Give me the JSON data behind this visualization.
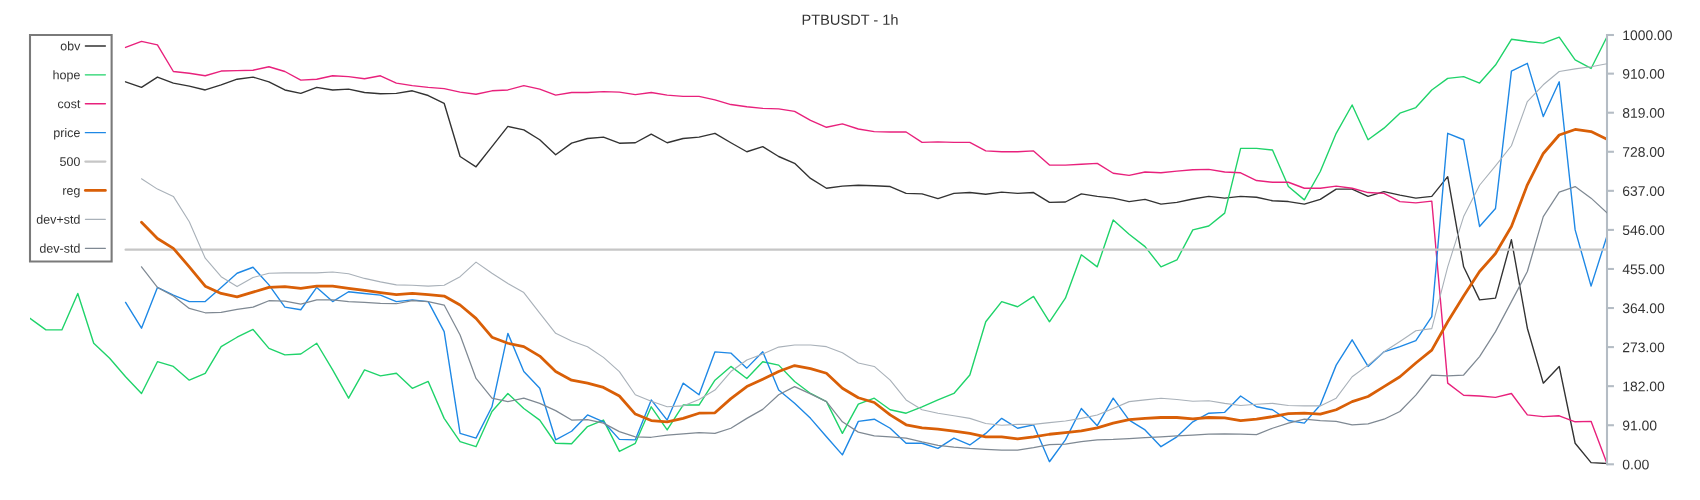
{
  "chart_data": {
    "type": "line",
    "title": "PTBUSDT - 1h",
    "categories": [
      null,
      null,
      null,
      null,
      null,
      null,
      null,
      null,
      null,
      null,
      null,
      null,
      null,
      null,
      null,
      null,
      null,
      null,
      null,
      null,
      null,
      null,
      null,
      null,
      null,
      null,
      null,
      null,
      null,
      null,
      null,
      null,
      null,
      null,
      null,
      null,
      null,
      null,
      null,
      null,
      null,
      null,
      null,
      null,
      null,
      null,
      null,
      null,
      null,
      null,
      null,
      null,
      null,
      null,
      null,
      null,
      null,
      null,
      null,
      null,
      null,
      null,
      null,
      null,
      null,
      null,
      null,
      null,
      null,
      null,
      null,
      null,
      null,
      null,
      null,
      null,
      null,
      null,
      null,
      null,
      null,
      null,
      null,
      null,
      null,
      null,
      null,
      null,
      null,
      null,
      null,
      null,
      null,
      null,
      null,
      null,
      null,
      null,
      null,
      null
    ],
    "series": [
      {
        "name": "obv",
        "color": "#333333",
        "values": [
          null,
          null,
          null,
          null,
          null,
          null,
          891,
          878,
          902,
          888,
          881,
          872,
          884,
          897,
          902,
          891,
          872,
          864,
          878,
          872,
          874,
          866,
          863,
          864,
          870,
          859,
          841,
          717,
          693,
          740,
          787,
          779,
          756,
          721,
          748,
          759,
          762,
          748,
          749,
          769,
          749,
          759,
          762,
          771,
          749,
          728,
          740,
          717,
          701,
          666,
          643,
          648,
          650,
          649,
          647,
          631,
          630,
          619,
          631,
          633,
          629,
          634,
          631,
          633,
          610,
          611,
          630,
          624,
          620,
          612,
          617,
          606,
          610,
          618,
          624,
          620,
          624,
          622,
          614,
          612,
          606,
          617,
          641,
          641,
          624,
          635,
          627,
          620,
          624,
          670,
          460,
          383,
          387,
          523,
          317,
          189,
          228,
          49,
          4,
          2
        ]
      },
      {
        "name": "hope",
        "color": "#1fd36a",
        "values": [
          340,
          313,
          313,
          398,
          282,
          247,
          204,
          165,
          239,
          228,
          196,
          212,
          274,
          296,
          314,
          270,
          255,
          257,
          282,
          220,
          154,
          220,
          206,
          212,
          177,
          193,
          107,
          53,
          41,
          123,
          165,
          130,
          103,
          49,
          48,
          88,
          103,
          30,
          49,
          134,
          80,
          138,
          138,
          196,
          228,
          200,
          239,
          231,
          193,
          165,
          146,
          72,
          140,
          154,
          127,
          119,
          134,
          150,
          165,
          208,
          332,
          379,
          367,
          391,
          332,
          387,
          488,
          460,
          569,
          536,
          507,
          460,
          476,
          546,
          555,
          585,
          736,
          736,
          732,
          647,
          616,
          682,
          771,
          837,
          756,
          783,
          818,
          831,
          872,
          899,
          903,
          888,
          930,
          990,
          985,
          981,
          995,
          942,
          922,
          996
        ]
      },
      {
        "name": "cost",
        "color": "#e8217c",
        "values": [
          null,
          null,
          null,
          null,
          null,
          null,
          971,
          985,
          977,
          915,
          911,
          905,
          916,
          917,
          918,
          926,
          915,
          895,
          897,
          905,
          903,
          898,
          905,
          888,
          882,
          878,
          875,
          867,
          862,
          870,
          872,
          882,
          874,
          860,
          866,
          866,
          868,
          867,
          861,
          866,
          860,
          857,
          857,
          849,
          838,
          833,
          829,
          828,
          822,
          801,
          785,
          793,
          781,
          775,
          774,
          774,
          750,
          751,
          750,
          750,
          730,
          728,
          728,
          730,
          697,
          697,
          699,
          701,
          678,
          673,
          681,
          679,
          683,
          686,
          687,
          681,
          679,
          661,
          657,
          657,
          643,
          643,
          648,
          643,
          633,
          631,
          612,
          609,
          613,
          189,
          161,
          159,
          156,
          165,
          115,
          111,
          113,
          99,
          100,
          2
        ]
      },
      {
        "name": "price",
        "color": "#1e88e5",
        "values": [
          null,
          null,
          null,
          null,
          null,
          null,
          377,
          317,
          412,
          394,
          379,
          379,
          412,
          445,
          459,
          418,
          366,
          360,
          412,
          379,
          402,
          398,
          394,
          379,
          383,
          379,
          309,
          72,
          61,
          134,
          305,
          216,
          177,
          57,
          77,
          115,
          99,
          58,
          57,
          150,
          103,
          189,
          162,
          262,
          259,
          224,
          262,
          173,
          142,
          107,
          64,
          22,
          100,
          105,
          84,
          49,
          49,
          37,
          61,
          45,
          72,
          107,
          84,
          92,
          6,
          57,
          130,
          90,
          154,
          103,
          80,
          41,
          64,
          99,
          119,
          121,
          159,
          134,
          127,
          102,
          96,
          138,
          231,
          290,
          228,
          262,
          274,
          288,
          344,
          771,
          756,
          554,
          596,
          916,
          934,
          810,
          891,
          546,
          415,
          532
        ]
      },
      {
        "name": "500",
        "color": "#c6c6c6",
        "values": [
          null,
          null,
          null,
          null,
          null,
          null,
          500,
          500,
          500,
          500,
          500,
          500,
          500,
          500,
          500,
          500,
          500,
          500,
          500,
          500,
          500,
          500,
          500,
          500,
          500,
          500,
          500,
          500,
          500,
          500,
          500,
          500,
          500,
          500,
          500,
          500,
          500,
          500,
          500,
          500,
          500,
          500,
          500,
          500,
          500,
          500,
          500,
          500,
          500,
          500,
          500,
          500,
          500,
          500,
          500,
          500,
          500,
          500,
          500,
          500,
          500,
          500,
          500,
          500,
          500,
          500,
          500,
          500,
          500,
          500,
          500,
          500,
          500,
          500,
          500,
          500,
          500,
          500,
          500,
          500,
          500,
          500,
          500,
          500,
          500,
          500,
          500,
          500,
          500,
          500,
          500,
          500,
          500,
          500,
          500,
          500,
          500,
          500,
          500,
          500
        ]
      },
      {
        "name": "reg",
        "color": "#d95f07",
        "values": [
          null,
          null,
          null,
          null,
          null,
          null,
          null,
          564,
          526,
          503,
          460,
          415,
          398,
          390,
          401,
          412,
          414,
          410,
          415,
          415,
          410,
          405,
          400,
          395,
          398,
          395,
          392,
          371,
          340,
          296,
          282,
          274,
          252,
          216,
          196,
          189,
          179,
          159,
          117,
          102,
          99,
          107,
          119,
          120,
          153,
          181,
          198,
          216,
          230,
          223,
          212,
          177,
          155,
          144,
          115,
          92,
          85,
          82,
          77,
          72,
          64,
          64,
          59,
          64,
          70,
          74,
          78,
          85,
          96,
          104,
          107,
          109,
          109,
          106,
          109,
          108,
          102,
          105,
          111,
          118,
          119,
          117,
          127,
          146,
          158,
          181,
          204,
          236,
          266,
          332,
          392,
          449,
          491,
          554,
          651,
          724,
          767,
          780,
          775,
          757
        ]
      },
      {
        "name": "dev+std",
        "color": "#a9b1b9",
        "values": [
          null,
          null,
          null,
          null,
          null,
          null,
          null,
          665,
          641,
          624,
          565,
          480,
          437,
          414,
          435,
          445,
          446,
          446,
          446,
          448,
          444,
          433,
          425,
          418,
          417,
          415,
          417,
          437,
          471,
          445,
          421,
          400,
          352,
          305,
          287,
          274,
          249,
          216,
          162,
          147,
          134,
          136,
          151,
          173,
          216,
          243,
          257,
          273,
          278,
          278,
          274,
          260,
          236,
          228,
          196,
          150,
          127,
          119,
          113,
          107,
          95,
          91,
          93,
          93,
          97,
          101,
          107,
          115,
          130,
          146,
          150,
          154,
          151,
          147,
          148,
          142,
          137,
          140,
          142,
          137,
          136,
          136,
          154,
          204,
          231,
          262,
          286,
          311,
          316,
          460,
          577,
          650,
          695,
          742,
          845,
          884,
          915,
          921,
          926,
          933
        ]
      },
      {
        "name": "dev-std",
        "color": "#7f8993",
        "values": [
          null,
          null,
          null,
          null,
          null,
          null,
          null,
          460,
          412,
          392,
          363,
          353,
          354,
          361,
          366,
          381,
          380,
          373,
          383,
          383,
          379,
          377,
          375,
          374,
          381,
          379,
          371,
          301,
          200,
          154,
          146,
          154,
          142,
          125,
          103,
          104,
          96,
          76,
          64,
          63,
          68,
          71,
          74,
          72,
          84,
          107,
          128,
          162,
          181,
          164,
          146,
          99,
          75,
          66,
          64,
          61,
          52,
          44,
          40,
          37,
          35,
          33,
          33,
          39,
          46,
          47,
          53,
          57,
          58,
          60,
          62,
          64,
          66,
          68,
          70,
          71,
          70,
          69,
          84,
          96,
          105,
          102,
          100,
          92,
          94,
          105,
          123,
          161,
          208,
          206,
          208,
          251,
          309,
          379,
          449,
          577,
          634,
          647,
          620,
          586
        ]
      }
    ],
    "ylim": [
      0,
      1000
    ],
    "yticks": [
      {
        "value": 0,
        "label": "0.00"
      },
      {
        "value": 91,
        "label": "91.00"
      },
      {
        "value": 182,
        "label": "182.00"
      },
      {
        "value": 273,
        "label": "273.00"
      },
      {
        "value": 364,
        "label": "364.00"
      },
      {
        "value": 455,
        "label": "455.00"
      },
      {
        "value": 546,
        "label": "546.00"
      },
      {
        "value": 637,
        "label": "637.00"
      },
      {
        "value": 728,
        "label": "728.00"
      },
      {
        "value": 819,
        "label": "819.00"
      },
      {
        "value": 910,
        "label": "910.00"
      },
      {
        "value": 1000,
        "label": "1000.00"
      }
    ],
    "legend": "top left",
    "tick_labels": "y"
  }
}
